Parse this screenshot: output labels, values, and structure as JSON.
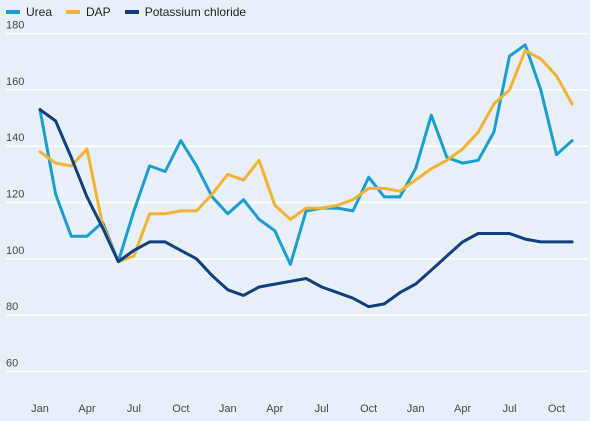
{
  "chart_data": {
    "type": "line",
    "title": "",
    "xlabel": "",
    "ylabel": "",
    "ylim": [
      55,
      185
    ],
    "yticks": [
      60,
      80,
      100,
      120,
      140,
      160,
      180
    ],
    "xtick_labels": [
      "Jan",
      "Apr",
      "Jul",
      "Oct",
      "Jan",
      "Apr",
      "Jul",
      "Oct",
      "Jan",
      "Apr",
      "Jul",
      "Oct"
    ],
    "xtick_index": [
      0,
      3,
      6,
      9,
      12,
      15,
      18,
      21,
      24,
      27,
      30,
      33
    ],
    "x_count": 35,
    "grid": true,
    "legend_position": "top-left",
    "series": [
      {
        "name": "Urea",
        "color": "#1b9dd0",
        "values": [
          153,
          123,
          108,
          108,
          113,
          99,
          117,
          133,
          131,
          142,
          133,
          122,
          116,
          121,
          114,
          110,
          98,
          117,
          118,
          118,
          117,
          129,
          122,
          122,
          132,
          151,
          136,
          134,
          135,
          145,
          172,
          176,
          160,
          137,
          142
        ]
      },
      {
        "name": "DAP",
        "color": "#f2b233",
        "values": [
          138,
          134,
          133,
          139,
          112,
          99,
          101,
          116,
          116,
          117,
          117,
          123,
          130,
          128,
          135,
          119,
          114,
          118,
          118,
          119,
          121,
          125,
          125,
          124,
          128,
          132,
          135,
          139,
          145,
          155,
          160,
          174,
          171,
          165,
          155
        ]
      },
      {
        "name": "Potassium chloride",
        "color": "#0e3f7e",
        "values": [
          153,
          149,
          136,
          122,
          111,
          99,
          103,
          106,
          106,
          103,
          100,
          94,
          89,
          87,
          90,
          91,
          92,
          93,
          90,
          88,
          86,
          83,
          84,
          88,
          91,
          96,
          101,
          106,
          109,
          109,
          109,
          107,
          106,
          106,
          106
        ]
      }
    ]
  }
}
